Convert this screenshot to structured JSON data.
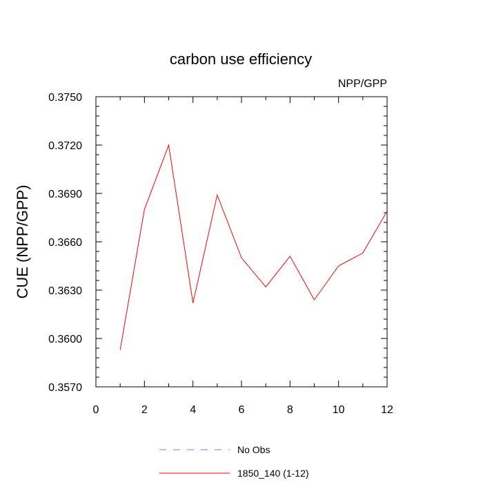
{
  "chart_data": {
    "type": "line",
    "title": "carbon use efficiency",
    "subtitle": "NPP/GPP",
    "xlabel": "",
    "ylabel": "CUE  (NPP/GPP)",
    "xlim": [
      0,
      12
    ],
    "ylim": [
      0.357,
      0.375
    ],
    "x_ticks": [
      0,
      2,
      4,
      6,
      8,
      10,
      12
    ],
    "x_tick_labels": [
      "0",
      "2",
      "4",
      "6",
      "8",
      "10",
      "12"
    ],
    "y_ticks": [
      0.357,
      0.36,
      0.363,
      0.366,
      0.369,
      0.372,
      0.375
    ],
    "y_tick_labels": [
      "0.3570",
      "0.3600",
      "0.3630",
      "0.3660",
      "0.3690",
      "0.3720",
      "0.3750"
    ],
    "grid": false,
    "legend_position": "bottom",
    "series": [
      {
        "name": "No Obs",
        "color": "#7777ff",
        "line_style": "dashed",
        "x": [],
        "y": []
      },
      {
        "name": "1850_140 (1-12)",
        "color": "#ff0000",
        "line_style": "solid",
        "x": [
          1,
          2,
          3,
          4,
          5,
          6,
          7,
          8,
          9,
          10,
          11,
          12
        ],
        "y": [
          0.3593,
          0.368,
          0.372,
          0.3622,
          0.3689,
          0.365,
          0.3632,
          0.3651,
          0.3624,
          0.3645,
          0.3653,
          0.3679
        ]
      }
    ]
  }
}
